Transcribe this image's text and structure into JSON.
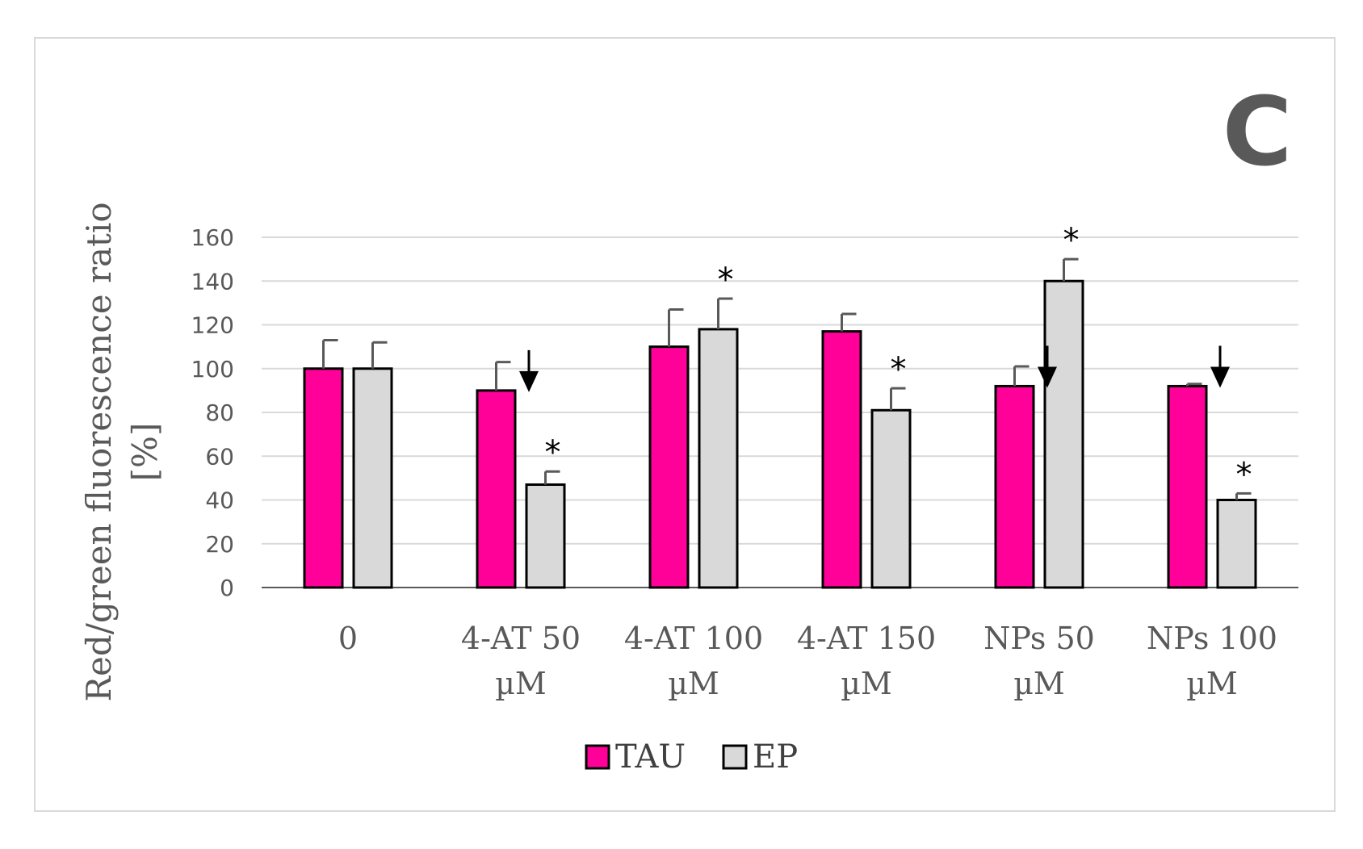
{
  "panel_label": "C",
  "colors": {
    "TAU": "#ff0099",
    "EP": "#d9d9d9",
    "grid": "#d9d9d9",
    "axis": "#595959"
  },
  "chart_data": {
    "type": "bar",
    "title": "",
    "xlabel": "",
    "ylabel_lines": [
      "Red/green fluorescence ratio",
      "[%]"
    ],
    "ylim": [
      0,
      160
    ],
    "yticks": [
      0,
      20,
      40,
      60,
      80,
      100,
      120,
      140,
      160
    ],
    "grid": true,
    "legend_position": "bottom",
    "categories": [
      [
        "0"
      ],
      [
        "4-AT 50",
        "µM"
      ],
      [
        "4-AT 100",
        "µM"
      ],
      [
        "4-AT 150",
        "µM"
      ],
      [
        "NPs 50",
        "µM"
      ],
      [
        "NPs 100",
        "µM"
      ]
    ],
    "series": [
      {
        "name": "TAU",
        "values": [
          100,
          90,
          110,
          117,
          92,
          92
        ],
        "errors": [
          13,
          13,
          17,
          8,
          9,
          1
        ]
      },
      {
        "name": "EP",
        "values": [
          100,
          47,
          118,
          81,
          140,
          40
        ],
        "errors": [
          12,
          6,
          14,
          10,
          10,
          3
        ]
      }
    ],
    "annotations": {
      "significance_marker": "*",
      "significant_EP": [
        false,
        true,
        true,
        true,
        true,
        true
      ],
      "arrow_after_TAU": [
        false,
        true,
        false,
        false,
        true,
        true
      ]
    }
  }
}
